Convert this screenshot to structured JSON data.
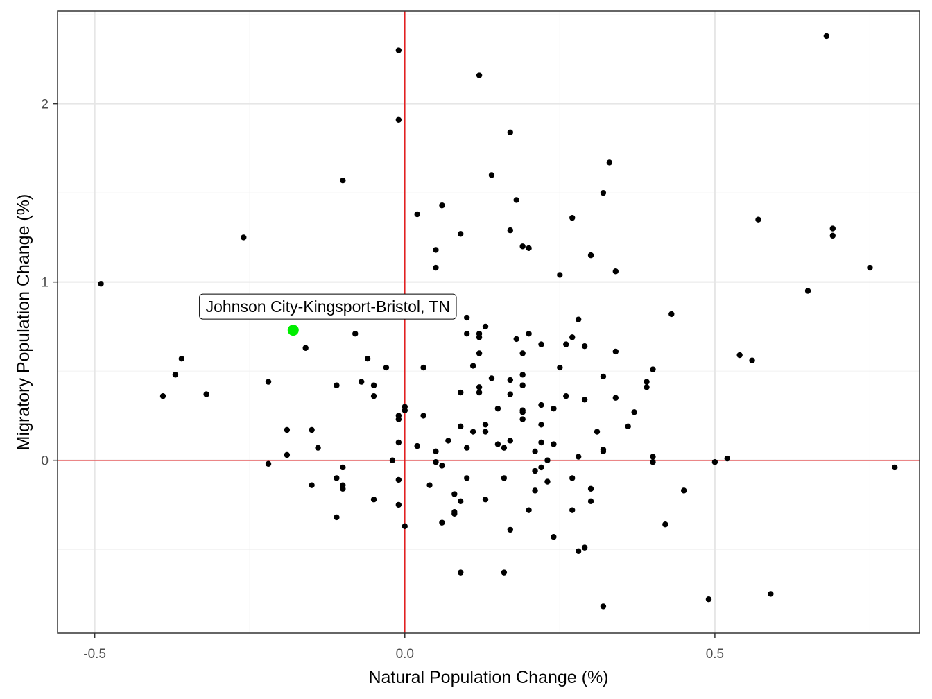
{
  "chart_data": {
    "type": "scatter",
    "xlabel": "Natural Population Change (%)",
    "ylabel": "Migratory Population Change (%)",
    "xlim": [
      -0.56,
      0.83
    ],
    "ylim": [
      -0.97,
      2.52
    ],
    "x_ticks": [
      -0.5,
      0.0,
      0.5
    ],
    "x_tick_labels": [
      "-0.5",
      "0.0",
      "0.5"
    ],
    "y_ticks": [
      0,
      1,
      2
    ],
    "y_tick_labels": [
      "0",
      "1",
      "2"
    ],
    "grid": true,
    "reference_lines": {
      "x": 0,
      "y": 0,
      "color": "#e41a1c"
    },
    "point_color": "#000000",
    "highlight_color": "#00ee00",
    "highlight": {
      "x": -0.18,
      "y": 0.73,
      "label": "Johnson City-Kingsport-Bristol, TN"
    },
    "points": [
      [
        -0.49,
        0.99
      ],
      [
        -0.26,
        1.25
      ],
      [
        -0.1,
        1.57
      ],
      [
        -0.01,
        2.3
      ],
      [
        -0.01,
        1.91
      ],
      [
        0.12,
        2.16
      ],
      [
        0.17,
        1.84
      ],
      [
        0.14,
        1.6
      ],
      [
        0.33,
        1.67
      ],
      [
        0.32,
        1.5
      ],
      [
        0.68,
        2.38
      ],
      [
        0.02,
        1.38
      ],
      [
        0.06,
        1.43
      ],
      [
        0.18,
        1.46
      ],
      [
        0.27,
        1.36
      ],
      [
        0.09,
        1.27
      ],
      [
        0.17,
        1.29
      ],
      [
        0.57,
        1.35
      ],
      [
        0.69,
        1.3
      ],
      [
        0.69,
        1.26
      ],
      [
        0.05,
        1.18
      ],
      [
        0.19,
        1.2
      ],
      [
        0.2,
        1.19
      ],
      [
        0.3,
        1.15
      ],
      [
        0.05,
        1.08
      ],
      [
        0.25,
        1.04
      ],
      [
        0.34,
        1.06
      ],
      [
        0.75,
        1.08
      ],
      [
        0.65,
        0.95
      ],
      [
        0.43,
        0.82
      ],
      [
        0.1,
        0.8
      ],
      [
        0.13,
        0.75
      ],
      [
        0.1,
        0.71
      ],
      [
        0.12,
        0.71
      ],
      [
        0.12,
        0.69
      ],
      [
        0.2,
        0.71
      ],
      [
        0.28,
        0.79
      ],
      [
        -0.08,
        0.71
      ],
      [
        -0.16,
        0.63
      ],
      [
        0.18,
        0.68
      ],
      [
        0.22,
        0.65
      ],
      [
        0.26,
        0.65
      ],
      [
        0.27,
        0.69
      ],
      [
        0.29,
        0.64
      ],
      [
        0.12,
        0.6
      ],
      [
        0.19,
        0.6
      ],
      [
        0.34,
        0.61
      ],
      [
        0.54,
        0.59
      ],
      [
        0.56,
        0.56
      ],
      [
        -0.36,
        0.57
      ],
      [
        -0.37,
        0.48
      ],
      [
        -0.06,
        0.57
      ],
      [
        -0.03,
        0.52
      ],
      [
        0.03,
        0.52
      ],
      [
        0.11,
        0.53
      ],
      [
        0.25,
        0.52
      ],
      [
        0.4,
        0.51
      ],
      [
        0.19,
        0.48
      ],
      [
        0.32,
        0.47
      ],
      [
        0.14,
        0.46
      ],
      [
        -0.22,
        0.44
      ],
      [
        -0.07,
        0.44
      ],
      [
        -0.11,
        0.42
      ],
      [
        -0.05,
        0.42
      ],
      [
        0.12,
        0.41
      ],
      [
        0.17,
        0.45
      ],
      [
        0.19,
        0.42
      ],
      [
        0.39,
        0.44
      ],
      [
        0.39,
        0.41
      ],
      [
        -0.39,
        0.36
      ],
      [
        -0.32,
        0.37
      ],
      [
        -0.05,
        0.36
      ],
      [
        0.09,
        0.38
      ],
      [
        0.12,
        0.38
      ],
      [
        0.17,
        0.37
      ],
      [
        0.26,
        0.36
      ],
      [
        0.29,
        0.34
      ],
      [
        0.34,
        0.35
      ],
      [
        0.0,
        0.3
      ],
      [
        0.0,
        0.28
      ],
      [
        0.15,
        0.29
      ],
      [
        0.19,
        0.28
      ],
      [
        0.19,
        0.27
      ],
      [
        0.22,
        0.31
      ],
      [
        0.24,
        0.29
      ],
      [
        0.37,
        0.27
      ],
      [
        -0.01,
        0.25
      ],
      [
        -0.01,
        0.23
      ],
      [
        0.03,
        0.25
      ],
      [
        0.19,
        0.23
      ],
      [
        -0.19,
        0.17
      ],
      [
        -0.15,
        0.17
      ],
      [
        0.09,
        0.19
      ],
      [
        0.11,
        0.16
      ],
      [
        0.13,
        0.2
      ],
      [
        0.13,
        0.16
      ],
      [
        0.22,
        0.2
      ],
      [
        0.31,
        0.16
      ],
      [
        0.36,
        0.19
      ],
      [
        -0.14,
        0.07
      ],
      [
        -0.01,
        0.1
      ],
      [
        0.02,
        0.08
      ],
      [
        0.07,
        0.11
      ],
      [
        0.1,
        0.07
      ],
      [
        0.15,
        0.09
      ],
      [
        0.16,
        0.07
      ],
      [
        0.17,
        0.11
      ],
      [
        0.22,
        0.1
      ],
      [
        0.24,
        0.09
      ],
      [
        -0.19,
        0.03
      ],
      [
        0.05,
        0.05
      ],
      [
        0.21,
        0.05
      ],
      [
        0.32,
        0.06
      ],
      [
        0.32,
        0.05
      ],
      [
        -0.02,
        0.0
      ],
      [
        0.05,
        -0.01
      ],
      [
        0.06,
        -0.03
      ],
      [
        0.23,
        0.0
      ],
      [
        0.28,
        0.02
      ],
      [
        0.4,
        0.02
      ],
      [
        0.4,
        -0.01
      ],
      [
        0.5,
        -0.01
      ],
      [
        0.52,
        0.01
      ],
      [
        -0.22,
        -0.02
      ],
      [
        -0.1,
        -0.04
      ],
      [
        0.21,
        -0.06
      ],
      [
        0.22,
        -0.04
      ],
      [
        0.79,
        -0.04
      ],
      [
        -0.11,
        -0.1
      ],
      [
        -0.01,
        -0.11
      ],
      [
        0.1,
        -0.1
      ],
      [
        0.16,
        -0.1
      ],
      [
        0.23,
        -0.12
      ],
      [
        0.27,
        -0.1
      ],
      [
        -0.15,
        -0.14
      ],
      [
        -0.1,
        -0.14
      ],
      [
        -0.1,
        -0.16
      ],
      [
        0.04,
        -0.14
      ],
      [
        0.21,
        -0.17
      ],
      [
        0.3,
        -0.16
      ],
      [
        0.45,
        -0.17
      ],
      [
        -0.05,
        -0.22
      ],
      [
        0.08,
        -0.19
      ],
      [
        0.09,
        -0.23
      ],
      [
        0.13,
        -0.22
      ],
      [
        0.3,
        -0.23
      ],
      [
        -0.01,
        -0.25
      ],
      [
        0.08,
        -0.3
      ],
      [
        0.08,
        -0.29
      ],
      [
        0.2,
        -0.28
      ],
      [
        0.27,
        -0.28
      ],
      [
        -0.11,
        -0.32
      ],
      [
        0.06,
        -0.35
      ],
      [
        0.0,
        -0.37
      ],
      [
        0.17,
        -0.39
      ],
      [
        0.42,
        -0.36
      ],
      [
        0.24,
        -0.43
      ],
      [
        0.28,
        -0.51
      ],
      [
        0.29,
        -0.49
      ],
      [
        0.09,
        -0.63
      ],
      [
        0.16,
        -0.63
      ],
      [
        0.49,
        -0.78
      ],
      [
        0.59,
        -0.75
      ],
      [
        0.32,
        -0.82
      ]
    ]
  }
}
